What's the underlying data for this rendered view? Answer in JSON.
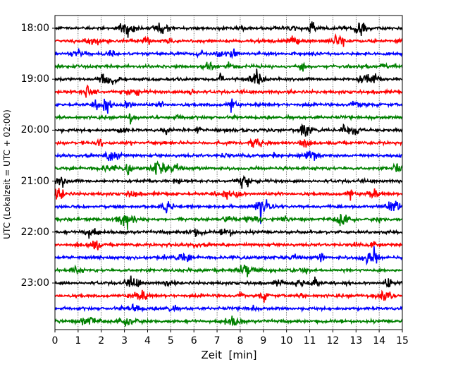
{
  "chart_data": {
    "type": "line",
    "xlabel": "Zeit  [min]",
    "ylabel": "UTC (Lokalzeit = UTC + 02:00)",
    "xlim": [
      0,
      15
    ],
    "x_ticks": [
      "0",
      "1",
      "2",
      "3",
      "4",
      "5",
      "6",
      "7",
      "8",
      "9",
      "10",
      "11",
      "12",
      "13",
      "14",
      "15"
    ],
    "y_tick_labels": [
      "18:00",
      "19:00",
      "20:00",
      "21:00",
      "22:00",
      "23:00"
    ],
    "grid": "vertical dotted lines at each minute",
    "row_interval_minutes": 15,
    "row_colors": [
      "#000000",
      "#ff0000",
      "#0000ff",
      "#008000"
    ],
    "traces": [
      {
        "start": "18:00",
        "color": "#000000"
      },
      {
        "start": "18:15",
        "color": "#ff0000"
      },
      {
        "start": "18:30",
        "color": "#0000ff"
      },
      {
        "start": "18:45",
        "color": "#008000"
      },
      {
        "start": "19:00",
        "color": "#000000"
      },
      {
        "start": "19:15",
        "color": "#ff0000"
      },
      {
        "start": "19:30",
        "color": "#0000ff"
      },
      {
        "start": "19:45",
        "color": "#008000"
      },
      {
        "start": "20:00",
        "color": "#000000"
      },
      {
        "start": "20:15",
        "color": "#ff0000"
      },
      {
        "start": "20:30",
        "color": "#0000ff"
      },
      {
        "start": "20:45",
        "color": "#008000"
      },
      {
        "start": "21:00",
        "color": "#000000"
      },
      {
        "start": "21:15",
        "color": "#ff0000"
      },
      {
        "start": "21:30",
        "color": "#0000ff"
      },
      {
        "start": "21:45",
        "color": "#008000"
      },
      {
        "start": "22:00",
        "color": "#000000"
      },
      {
        "start": "22:15",
        "color": "#ff0000"
      },
      {
        "start": "22:30",
        "color": "#0000ff"
      },
      {
        "start": "22:45",
        "color": "#008000"
      },
      {
        "start": "23:00",
        "color": "#000000"
      },
      {
        "start": "23:15",
        "color": "#ff0000"
      },
      {
        "start": "23:30",
        "color": "#0000ff"
      },
      {
        "start": "23:45",
        "color": "#008000"
      }
    ]
  }
}
